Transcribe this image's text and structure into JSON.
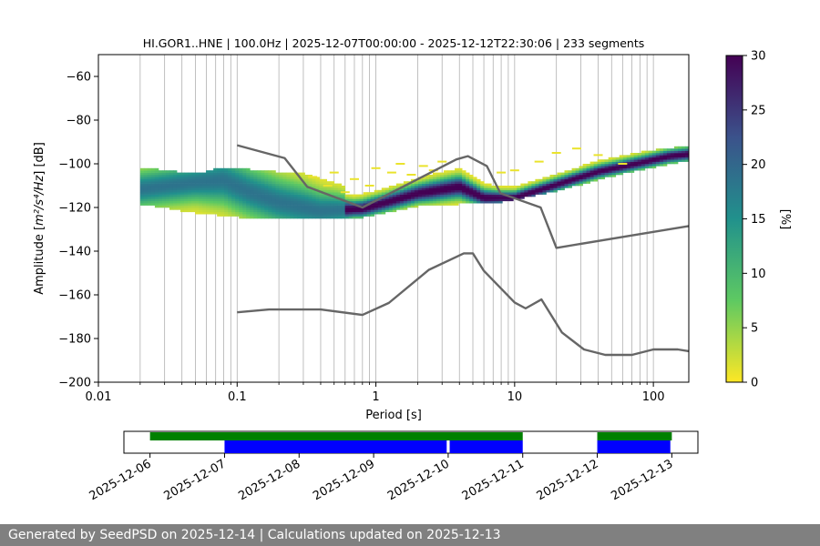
{
  "chart_data": {
    "type": "heatmap",
    "title": "HI.GOR1..HNE | 100.0Hz | 2025-12-07T00:00:00 - 2025-12-12T22:30:06 | 233 segments",
    "xlabel": "Period [s]",
    "ylabel_prefix": "Amplitude [",
    "ylabel_unit": "m²/s⁴/Hz",
    "ylabel_suffix": "] [dB]",
    "x_scale": "log",
    "xlim": [
      0.01,
      180
    ],
    "ylim": [
      -200,
      -50
    ],
    "x_ticks": [
      {
        "value": 0.01,
        "label": "0.01"
      },
      {
        "value": 0.1,
        "label": "0.1"
      },
      {
        "value": 1,
        "label": "1"
      },
      {
        "value": 10,
        "label": "10"
      },
      {
        "value": 100,
        "label": "100"
      }
    ],
    "y_ticks": [
      {
        "value": -60,
        "label": "−60"
      },
      {
        "value": -80,
        "label": "−80"
      },
      {
        "value": -100,
        "label": "−100"
      },
      {
        "value": -120,
        "label": "−120"
      },
      {
        "value": -140,
        "label": "−140"
      },
      {
        "value": -160,
        "label": "−160"
      },
      {
        "value": -180,
        "label": "−180"
      },
      {
        "value": -200,
        "label": "−200"
      }
    ],
    "grid": "x-major-and-minor",
    "colorbar": {
      "label": "[%]",
      "range": [
        0,
        30
      ],
      "ticks": [
        {
          "value": 0,
          "label": "0"
        },
        {
          "value": 5,
          "label": "5"
        },
        {
          "value": 10,
          "label": "10"
        },
        {
          "value": 15,
          "label": "15"
        },
        {
          "value": 20,
          "label": "20"
        },
        {
          "value": 25,
          "label": "25"
        },
        {
          "value": 30,
          "label": "30"
        }
      ],
      "colormap": [
        "#fde725",
        "#5ec962",
        "#21918c",
        "#3b528b",
        "#440154"
      ]
    },
    "noise_models": [
      {
        "name": "high-noise-model",
        "points": [
          [
            0.1,
            -91.5
          ],
          [
            0.22,
            -97.4
          ],
          [
            0.32,
            -110.5
          ],
          [
            0.8,
            -120.0
          ],
          [
            3.8,
            -98.0
          ],
          [
            4.6,
            -96.5
          ],
          [
            6.3,
            -101.0
          ],
          [
            7.9,
            -113.5
          ],
          [
            15.4,
            -120.0
          ],
          [
            20.0,
            -138.5
          ],
          [
            180,
            -128.5
          ]
        ]
      },
      {
        "name": "low-noise-model",
        "points": [
          [
            0.1,
            -168.0
          ],
          [
            0.17,
            -166.7
          ],
          [
            0.4,
            -166.7
          ],
          [
            0.8,
            -169.2
          ],
          [
            1.24,
            -163.7
          ],
          [
            2.4,
            -148.6
          ],
          [
            4.3,
            -141.0
          ],
          [
            5.0,
            -141.0
          ],
          [
            6.0,
            -149.0
          ],
          [
            10.0,
            -163.5
          ],
          [
            12.0,
            -166.2
          ],
          [
            15.6,
            -162.1
          ],
          [
            21.9,
            -177.2
          ],
          [
            31.6,
            -185.0
          ],
          [
            45.0,
            -187.5
          ],
          [
            70.0,
            -187.5
          ],
          [
            100,
            -185.0
          ],
          [
            150,
            -185.0
          ],
          [
            180,
            -185.8
          ]
        ]
      }
    ],
    "psd_mode": [
      [
        0.02,
        -112
      ],
      [
        0.05,
        -109
      ],
      [
        0.08,
        -108
      ],
      [
        0.12,
        -113
      ],
      [
        0.2,
        -118
      ],
      [
        0.4,
        -122
      ],
      [
        0.8,
        -121
      ],
      [
        1.2,
        -118
      ],
      [
        2.0,
        -114
      ],
      [
        4.0,
        -111
      ],
      [
        6.0,
        -116
      ],
      [
        10,
        -116
      ],
      [
        20,
        -110
      ],
      [
        40,
        -104
      ],
      [
        80,
        -100
      ],
      [
        130,
        -97
      ],
      [
        180,
        -96
      ]
    ],
    "psd_upper": [
      [
        0.02,
        -103
      ],
      [
        0.05,
        -106
      ],
      [
        0.08,
        -103
      ],
      [
        0.12,
        -104
      ],
      [
        0.3,
        -106
      ],
      [
        0.7,
        -113
      ],
      [
        1.2,
        -110
      ],
      [
        2.5,
        -105
      ],
      [
        4.0,
        -103
      ],
      [
        8.0,
        -108
      ],
      [
        20,
        -106
      ],
      [
        40,
        -100
      ],
      [
        80,
        -96
      ],
      [
        180,
        -93
      ]
    ],
    "psd_lower": [
      [
        0.02,
        -118
      ],
      [
        0.05,
        -122
      ],
      [
        0.1,
        -124
      ],
      [
        0.2,
        -125
      ],
      [
        0.5,
        -125
      ],
      [
        0.8,
        -124
      ],
      [
        1.2,
        -122
      ],
      [
        2.0,
        -119
      ],
      [
        4.0,
        -118
      ],
      [
        8.0,
        -117
      ],
      [
        20,
        -112
      ],
      [
        60,
        -104
      ],
      [
        180,
        -98
      ]
    ],
    "psd_scatter": [
      [
        0.35,
        -106
      ],
      [
        0.5,
        -104
      ],
      [
        0.7,
        -107
      ],
      [
        1.0,
        -102
      ],
      [
        1.5,
        -100
      ],
      [
        2.2,
        -101
      ],
      [
        3.0,
        -99
      ],
      [
        0.45,
        -110
      ],
      [
        0.9,
        -110
      ],
      [
        1.8,
        -105
      ],
      [
        8.0,
        -104
      ],
      [
        10,
        -103
      ],
      [
        15,
        -99
      ],
      [
        20,
        -95
      ],
      [
        28,
        -93
      ],
      [
        40,
        -96
      ],
      [
        60,
        -100
      ],
      [
        0.6,
        -113
      ],
      [
        1.3,
        -104
      ],
      [
        2.6,
        -103
      ]
    ],
    "timeline": {
      "date_ticks": [
        "2025-12-06",
        "2025-12-07",
        "2025-12-08",
        "2025-12-09",
        "2025-12-10",
        "2025-12-11",
        "2025-12-12",
        "2025-12-13"
      ],
      "range_days": [
        -0.35,
        7.35
      ],
      "available_data": [
        [
          0.0,
          5.0
        ],
        [
          6.0,
          7.0
        ]
      ],
      "used_data": [
        [
          1.0,
          3.98
        ],
        [
          4.02,
          5.0
        ],
        [
          6.0,
          6.98
        ]
      ],
      "available_color": "#008000",
      "used_color": "#0000ff"
    }
  },
  "footer": {
    "text": "Generated by SeedPSD on 2025-12-14 | Calculations updated on 2025-12-13"
  }
}
